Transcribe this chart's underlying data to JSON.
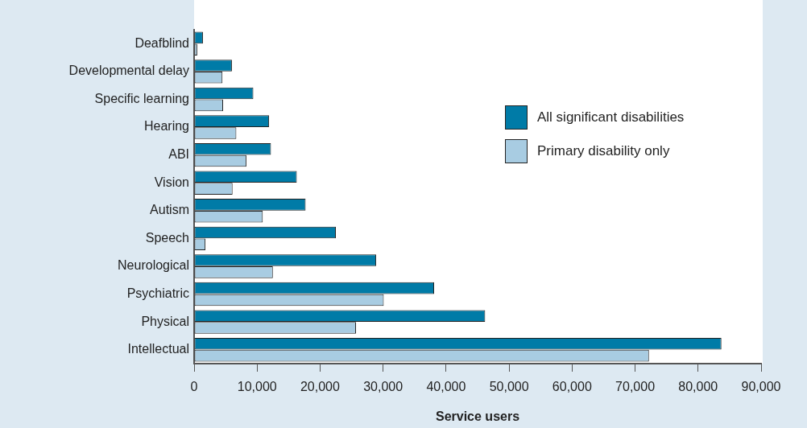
{
  "chart_data": {
    "type": "bar",
    "orientation": "horizontal",
    "xlabel": "Service users",
    "categories": [
      "Deafblind",
      "Developmental delay",
      "Specific learning",
      "Hearing",
      "ABI",
      "Vision",
      "Autism",
      "Speech",
      "Neurological",
      "Psychiatric",
      "Physical",
      "Intellectual"
    ],
    "series": [
      {
        "name": "All significant disabilities",
        "color": "#007ba7",
        "values": [
          1400,
          6000,
          9400,
          11900,
          12200,
          16300,
          17700,
          22500,
          28900,
          38100,
          46200,
          83700
        ]
      },
      {
        "name": "Primary disability only",
        "color": "#a8cce2",
        "values": [
          500,
          4500,
          4600,
          6700,
          8300,
          6100,
          10900,
          1800,
          12500,
          30100,
          25700,
          72200
        ]
      }
    ],
    "xlim": [
      0,
      90000
    ],
    "xticks": [
      0,
      {
        "value": 10000,
        "label": "10,000"
      },
      {
        "value": 20000,
        "label": "20,000"
      },
      {
        "value": 30000,
        "label": "30,000"
      },
      {
        "value": 40000,
        "label": "40,000"
      },
      {
        "value": 50000,
        "label": "50,000"
      },
      {
        "value": 60000,
        "label": "60,000"
      },
      {
        "value": 70000,
        "label": "70,000"
      },
      {
        "value": 80000,
        "label": "80,000"
      },
      {
        "value": 90000,
        "label": "90,000"
      }
    ],
    "grid": false,
    "legend": "top right"
  }
}
